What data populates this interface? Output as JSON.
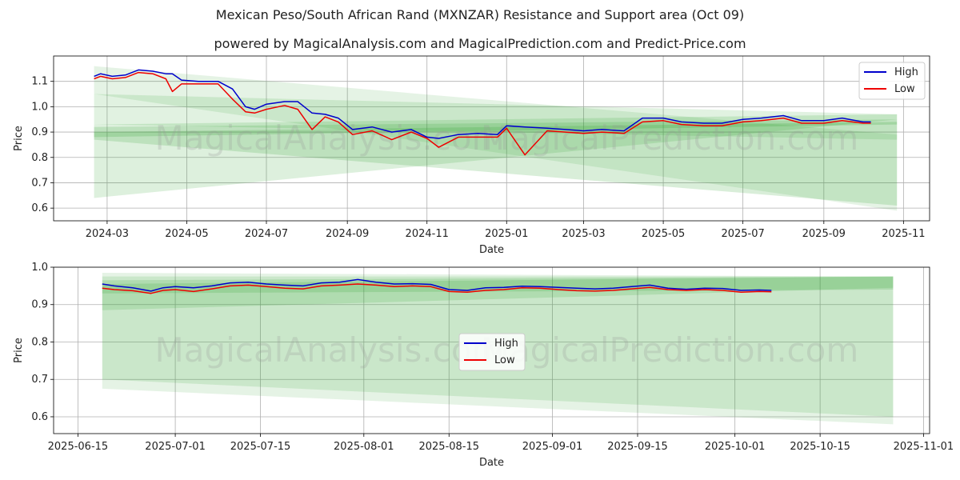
{
  "page": {
    "title": "Mexican Peso/South African Rand (MXNZAR) Resistance and Support area (Oct 09)",
    "subtitle": "powered by MagicalAnalysis.com and MagicalPrediction.com and Predict-Price.com",
    "watermark_left": "MagicalAnalysis.com",
    "watermark_right": "MagicalPrediction.com"
  },
  "colors": {
    "high": "#0000cc",
    "low": "#ee0000",
    "band": "#2ca02c",
    "grid": "#b0b0b0"
  },
  "chart_data": [
    {
      "type": "line",
      "xlabel": "Date",
      "ylabel": "Price",
      "x_axis_type": "date",
      "xlim": [
        "2024-01-20",
        "2025-11-21"
      ],
      "ylim": [
        0.55,
        1.2
      ],
      "grid": true,
      "legend_position": "top-right",
      "x_ticks": [
        "2024-03-01",
        "2024-05-01",
        "2024-07-01",
        "2024-09-01",
        "2024-11-01",
        "2025-01-01",
        "2025-03-01",
        "2025-05-01",
        "2025-07-01",
        "2025-09-01",
        "2025-11-01"
      ],
      "x_tick_labels": [
        "2024-03",
        "2024-05",
        "2024-07",
        "2024-09",
        "2024-11",
        "2025-01",
        "2025-03",
        "2025-05",
        "2025-07",
        "2025-09",
        "2025-11"
      ],
      "y_ticks": [
        0.6,
        0.7,
        0.8,
        0.9,
        1.0,
        1.1
      ],
      "y_tick_labels": [
        "0.6",
        "0.7",
        "0.8",
        "0.9",
        "1.0",
        "1.1"
      ],
      "bands": [
        {
          "x": [
            "2024-02-20",
            "2025-10-27"
          ],
          "upper": [
            1.16,
            0.89
          ],
          "lower": [
            1.05,
            0.59
          ]
        },
        {
          "x": [
            "2024-02-20",
            "2025-10-27"
          ],
          "upper": [
            1.05,
            0.97
          ],
          "lower": [
            0.93,
            0.87
          ]
        },
        {
          "x": [
            "2024-02-20",
            "2025-10-27"
          ],
          "upper": [
            0.93,
            0.97
          ],
          "lower": [
            0.64,
            0.95
          ]
        },
        {
          "x": [
            "2024-02-20",
            "2025-10-27"
          ],
          "upper": [
            0.92,
            0.95
          ],
          "lower": [
            0.87,
            0.61
          ]
        },
        {
          "x": [
            "2024-02-20",
            "2025-10-27"
          ],
          "upper": [
            0.9,
            0.94
          ],
          "lower": [
            0.88,
            0.93
          ]
        }
      ],
      "series": [
        {
          "name": "High",
          "x": [
            "2024-02-20",
            "2024-02-25",
            "2024-03-05",
            "2024-03-15",
            "2024-03-25",
            "2024-04-05",
            "2024-04-15",
            "2024-04-20",
            "2024-04-27",
            "2024-05-10",
            "2024-05-25",
            "2024-06-05",
            "2024-06-15",
            "2024-06-22",
            "2024-07-01",
            "2024-07-15",
            "2024-07-25",
            "2024-08-05",
            "2024-08-15",
            "2024-08-25",
            "2024-09-05",
            "2024-09-20",
            "2024-10-05",
            "2024-10-20",
            "2024-11-01",
            "2024-11-10",
            "2024-11-25",
            "2024-12-10",
            "2024-12-25",
            "2025-01-01",
            "2025-01-15",
            "2025-02-01",
            "2025-02-15",
            "2025-03-01",
            "2025-03-15",
            "2025-04-01",
            "2025-04-15",
            "2025-05-01",
            "2025-05-15",
            "2025-06-01",
            "2025-06-15",
            "2025-07-01",
            "2025-07-15",
            "2025-08-01",
            "2025-08-15",
            "2025-09-01",
            "2025-09-15",
            "2025-10-01",
            "2025-10-07"
          ],
          "values": [
            1.12,
            1.13,
            1.12,
            1.125,
            1.145,
            1.14,
            1.13,
            1.13,
            1.105,
            1.1,
            1.1,
            1.07,
            1.0,
            0.99,
            1.01,
            1.02,
            1.02,
            0.975,
            0.97,
            0.955,
            0.91,
            0.92,
            0.9,
            0.91,
            0.88,
            0.875,
            0.89,
            0.895,
            0.89,
            0.925,
            0.92,
            0.915,
            0.91,
            0.905,
            0.91,
            0.905,
            0.955,
            0.955,
            0.94,
            0.935,
            0.935,
            0.95,
            0.955,
            0.965,
            0.945,
            0.945,
            0.955,
            0.94,
            0.94
          ]
        },
        {
          "name": "Low",
          "x": [
            "2024-02-20",
            "2024-02-25",
            "2024-03-05",
            "2024-03-15",
            "2024-03-25",
            "2024-04-05",
            "2024-04-15",
            "2024-04-20",
            "2024-04-27",
            "2024-05-10",
            "2024-05-25",
            "2024-06-05",
            "2024-06-15",
            "2024-06-22",
            "2024-07-01",
            "2024-07-15",
            "2024-07-25",
            "2024-08-05",
            "2024-08-15",
            "2024-08-25",
            "2024-09-05",
            "2024-09-20",
            "2024-10-05",
            "2024-10-20",
            "2024-11-01",
            "2024-11-10",
            "2024-11-25",
            "2024-12-10",
            "2024-12-25",
            "2025-01-01",
            "2025-01-15",
            "2025-02-01",
            "2025-02-15",
            "2025-03-01",
            "2025-03-15",
            "2025-04-01",
            "2025-04-15",
            "2025-05-01",
            "2025-05-15",
            "2025-06-01",
            "2025-06-15",
            "2025-07-01",
            "2025-07-15",
            "2025-08-01",
            "2025-08-15",
            "2025-09-01",
            "2025-09-15",
            "2025-10-01",
            "2025-10-07"
          ],
          "values": [
            1.11,
            1.12,
            1.11,
            1.115,
            1.135,
            1.13,
            1.11,
            1.06,
            1.09,
            1.09,
            1.09,
            1.03,
            0.98,
            0.975,
            0.99,
            1.005,
            0.99,
            0.91,
            0.96,
            0.94,
            0.89,
            0.905,
            0.87,
            0.9,
            0.875,
            0.84,
            0.88,
            0.88,
            0.88,
            0.915,
            0.81,
            0.905,
            0.9,
            0.895,
            0.9,
            0.895,
            0.94,
            0.945,
            0.93,
            0.925,
            0.925,
            0.94,
            0.945,
            0.955,
            0.935,
            0.935,
            0.945,
            0.935,
            0.935
          ]
        }
      ]
    },
    {
      "type": "line",
      "xlabel": "Date",
      "ylabel": "Price",
      "x_axis_type": "date",
      "xlim": [
        "2025-06-11",
        "2025-11-02"
      ],
      "ylim": [
        0.555,
        1.0
      ],
      "grid": true,
      "legend_position": "center",
      "x_ticks": [
        "2025-06-15",
        "2025-07-01",
        "2025-07-15",
        "2025-08-01",
        "2025-08-15",
        "2025-09-01",
        "2025-09-15",
        "2025-10-01",
        "2025-10-15",
        "2025-11-01"
      ],
      "x_tick_labels": [
        "2025-06-15",
        "2025-07-01",
        "2025-07-15",
        "2025-08-01",
        "2025-08-15",
        "2025-09-01",
        "2025-09-15",
        "2025-10-01",
        "2025-10-15",
        "2025-11-01"
      ],
      "y_ticks": [
        0.6,
        0.7,
        0.8,
        0.9,
        1.0
      ],
      "y_tick_labels": [
        "0.6",
        "0.7",
        "0.8",
        "0.9",
        "1.0"
      ],
      "bands": [
        {
          "x": [
            "2025-06-19",
            "2025-10-27"
          ],
          "upper": [
            0.985,
            0.975
          ],
          "lower": [
            0.675,
            0.58
          ]
        },
        {
          "x": [
            "2025-06-19",
            "2025-10-27"
          ],
          "upper": [
            0.975,
            0.975
          ],
          "lower": [
            0.7,
            0.6
          ]
        },
        {
          "x": [
            "2025-06-19",
            "2025-10-27"
          ],
          "upper": [
            0.965,
            0.975
          ],
          "lower": [
            0.885,
            0.945
          ]
        },
        {
          "x": [
            "2025-06-19",
            "2025-10-27"
          ],
          "upper": [
            0.955,
            0.975
          ],
          "lower": [
            0.93,
            0.94
          ]
        }
      ],
      "series": [
        {
          "name": "High",
          "x": [
            "2025-06-19",
            "2025-06-21",
            "2025-06-24",
            "2025-06-27",
            "2025-06-29",
            "2025-07-01",
            "2025-07-04",
            "2025-07-07",
            "2025-07-10",
            "2025-07-13",
            "2025-07-16",
            "2025-07-19",
            "2025-07-22",
            "2025-07-25",
            "2025-07-28",
            "2025-07-31",
            "2025-08-03",
            "2025-08-06",
            "2025-08-09",
            "2025-08-12",
            "2025-08-15",
            "2025-08-18",
            "2025-08-21",
            "2025-08-24",
            "2025-08-27",
            "2025-08-30",
            "2025-09-02",
            "2025-09-05",
            "2025-09-08",
            "2025-09-11",
            "2025-09-14",
            "2025-09-17",
            "2025-09-20",
            "2025-09-23",
            "2025-09-26",
            "2025-09-29",
            "2025-10-02",
            "2025-10-05",
            "2025-10-07"
          ],
          "values": [
            0.955,
            0.95,
            0.945,
            0.936,
            0.945,
            0.948,
            0.945,
            0.95,
            0.958,
            0.96,
            0.955,
            0.952,
            0.95,
            0.958,
            0.96,
            0.967,
            0.96,
            0.955,
            0.956,
            0.954,
            0.94,
            0.938,
            0.945,
            0.946,
            0.949,
            0.948,
            0.946,
            0.944,
            0.942,
            0.944,
            0.948,
            0.952,
            0.944,
            0.941,
            0.944,
            0.943,
            0.938,
            0.939,
            0.938
          ]
        },
        {
          "name": "Low",
          "x": [
            "2025-06-19",
            "2025-06-21",
            "2025-06-24",
            "2025-06-27",
            "2025-06-29",
            "2025-07-01",
            "2025-07-04",
            "2025-07-07",
            "2025-07-10",
            "2025-07-13",
            "2025-07-16",
            "2025-07-19",
            "2025-07-22",
            "2025-07-25",
            "2025-07-28",
            "2025-07-31",
            "2025-08-03",
            "2025-08-06",
            "2025-08-09",
            "2025-08-12",
            "2025-08-15",
            "2025-08-18",
            "2025-08-21",
            "2025-08-24",
            "2025-08-27",
            "2025-08-30",
            "2025-09-02",
            "2025-09-05",
            "2025-09-08",
            "2025-09-11",
            "2025-09-14",
            "2025-09-17",
            "2025-09-20",
            "2025-09-23",
            "2025-09-26",
            "2025-09-29",
            "2025-10-02",
            "2025-10-05",
            "2025-10-07"
          ],
          "values": [
            0.944,
            0.94,
            0.937,
            0.93,
            0.938,
            0.94,
            0.935,
            0.942,
            0.95,
            0.952,
            0.948,
            0.944,
            0.942,
            0.95,
            0.952,
            0.955,
            0.952,
            0.948,
            0.95,
            0.948,
            0.935,
            0.933,
            0.938,
            0.94,
            0.945,
            0.944,
            0.94,
            0.937,
            0.936,
            0.938,
            0.942,
            0.946,
            0.94,
            0.938,
            0.94,
            0.938,
            0.933,
            0.935,
            0.934
          ]
        }
      ]
    }
  ]
}
